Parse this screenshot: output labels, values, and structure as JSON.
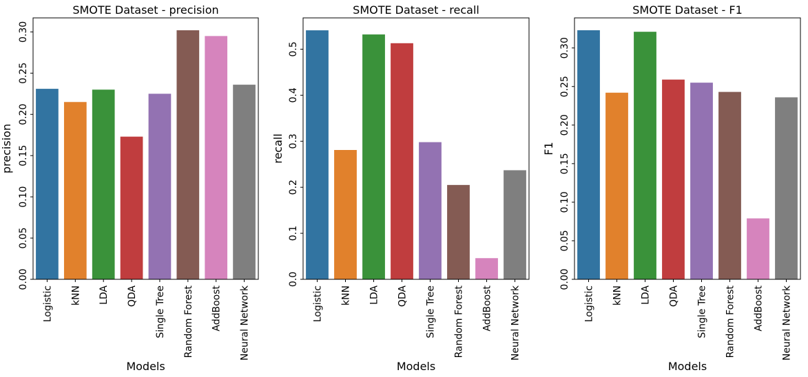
{
  "chart_data": [
    {
      "type": "bar",
      "title": "SMOTE Dataset - precision",
      "xlabel": "Models",
      "ylabel": "precision",
      "categories": [
        "Logistic",
        "kNN",
        "LDA",
        "QDA",
        "Single Tree",
        "Random Forest",
        "AddBoost",
        "Neural Network"
      ],
      "values": [
        0.231,
        0.215,
        0.23,
        0.173,
        0.225,
        0.302,
        0.295,
        0.236
      ],
      "ylim": [
        0,
        0.317
      ],
      "yticks": [
        0.0,
        0.05,
        0.1,
        0.15,
        0.2,
        0.25,
        0.3
      ],
      "ytick_labels": [
        "0.00",
        "0.05",
        "0.10",
        "0.15",
        "0.20",
        "0.25",
        "0.30"
      ],
      "grid": false
    },
    {
      "type": "bar",
      "title": "SMOTE Dataset - recall",
      "xlabel": "Models",
      "ylabel": "recall",
      "categories": [
        "Logistic",
        "kNN",
        "LDA",
        "QDA",
        "Single Tree",
        "Random Forest",
        "AddBoost",
        "Neural Network"
      ],
      "values": [
        0.541,
        0.281,
        0.532,
        0.513,
        0.298,
        0.205,
        0.046,
        0.237
      ],
      "ylim": [
        0,
        0.568
      ],
      "yticks": [
        0.0,
        0.1,
        0.2,
        0.3,
        0.4,
        0.5
      ],
      "ytick_labels": [
        "0.0",
        "0.1",
        "0.2",
        "0.3",
        "0.4",
        "0.5"
      ],
      "grid": false
    },
    {
      "type": "bar",
      "title": "SMOTE Dataset - F1",
      "xlabel": "Models",
      "ylabel": "F1",
      "categories": [
        "Logistic",
        "kNN",
        "LDA",
        "QDA",
        "Single Tree",
        "Random Forest",
        "AddBoost",
        "Neural Network"
      ],
      "values": [
        0.323,
        0.242,
        0.321,
        0.259,
        0.255,
        0.243,
        0.079,
        0.236
      ],
      "ylim": [
        0,
        0.339
      ],
      "yticks": [
        0.0,
        0.05,
        0.1,
        0.15,
        0.2,
        0.25,
        0.3
      ],
      "ytick_labels": [
        "0.00",
        "0.05",
        "0.10",
        "0.15",
        "0.20",
        "0.25",
        "0.30"
      ],
      "grid": false
    }
  ],
  "colors": [
    "#3274a1",
    "#e1812c",
    "#3a923a",
    "#c03d3e",
    "#9372b2",
    "#845b53",
    "#d684bd",
    "#7f7f7f"
  ]
}
